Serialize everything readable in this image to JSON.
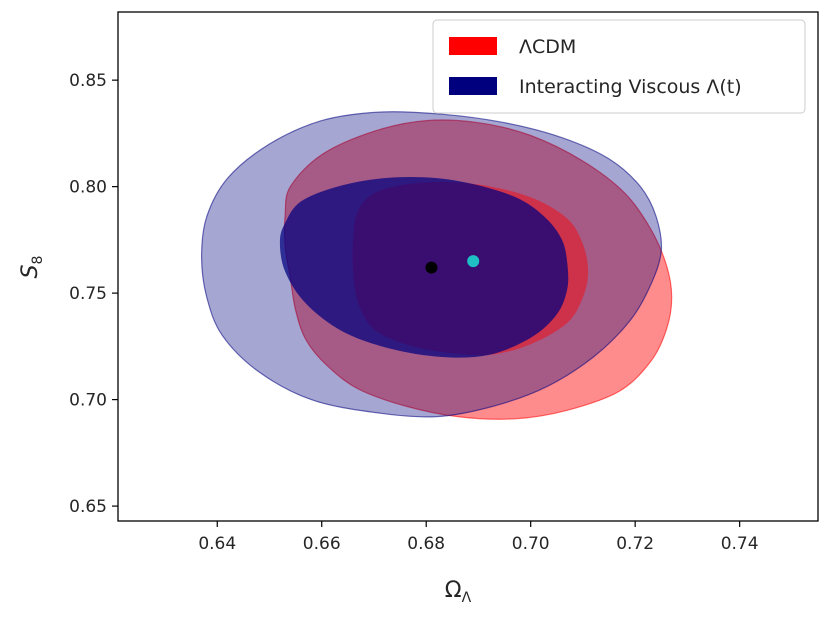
{
  "chart_data": {
    "type": "contour",
    "title": "",
    "xlabel": "Ω",
    "xlabel_sub": "Λ",
    "ylabel": "S",
    "ylabel_sub": "8",
    "xlim": [
      0.621,
      0.755
    ],
    "ylim": [
      0.643,
      0.882
    ],
    "xticks": [
      {
        "value": 0.64,
        "label": "0.64"
      },
      {
        "value": 0.66,
        "label": "0.66"
      },
      {
        "value": 0.68,
        "label": "0.68"
      },
      {
        "value": 0.7,
        "label": "0.70"
      },
      {
        "value": 0.72,
        "label": "0.72"
      },
      {
        "value": 0.74,
        "label": "0.74"
      }
    ],
    "yticks": [
      {
        "value": 0.65,
        "label": "0.65"
      },
      {
        "value": 0.7,
        "label": "0.70"
      },
      {
        "value": 0.75,
        "label": "0.75"
      },
      {
        "value": 0.8,
        "label": "0.80"
      },
      {
        "value": 0.85,
        "label": "0.85"
      }
    ],
    "grid": false,
    "legend_position": "top-right",
    "series": [
      {
        "name": "ΛCDM",
        "color": "#ff0000",
        "best_fit": {
          "x": 0.689,
          "y": 0.765,
          "color": "#1fbfc6"
        },
        "contour_68": [
          [
            0.667,
            0.789
          ],
          [
            0.671,
            0.798
          ],
          [
            0.68,
            0.802
          ],
          [
            0.69,
            0.801
          ],
          [
            0.7,
            0.795
          ],
          [
            0.707,
            0.785
          ],
          [
            0.71,
            0.773
          ],
          [
            0.711,
            0.76
          ],
          [
            0.71,
            0.748
          ],
          [
            0.707,
            0.736
          ],
          [
            0.7,
            0.726
          ],
          [
            0.692,
            0.721
          ],
          [
            0.684,
            0.722
          ],
          [
            0.676,
            0.726
          ],
          [
            0.67,
            0.733
          ],
          [
            0.667,
            0.745
          ],
          [
            0.666,
            0.76
          ],
          [
            0.666,
            0.775
          ]
        ],
        "contour_95": [
          [
            0.654,
            0.8
          ],
          [
            0.66,
            0.815
          ],
          [
            0.67,
            0.826
          ],
          [
            0.68,
            0.831
          ],
          [
            0.69,
            0.83
          ],
          [
            0.7,
            0.824
          ],
          [
            0.71,
            0.812
          ],
          [
            0.718,
            0.797
          ],
          [
            0.723,
            0.78
          ],
          [
            0.726,
            0.763
          ],
          [
            0.727,
            0.748
          ],
          [
            0.726,
            0.733
          ],
          [
            0.723,
            0.718
          ],
          [
            0.717,
            0.704
          ],
          [
            0.707,
            0.695
          ],
          [
            0.697,
            0.691
          ],
          [
            0.686,
            0.692
          ],
          [
            0.676,
            0.697
          ],
          [
            0.667,
            0.705
          ],
          [
            0.661,
            0.716
          ],
          [
            0.657,
            0.728
          ],
          [
            0.655,
            0.742
          ],
          [
            0.654,
            0.757
          ],
          [
            0.653,
            0.772
          ],
          [
            0.653,
            0.787
          ]
        ]
      },
      {
        "name": "Interacting Viscous Λ(t)",
        "color": "#00007f",
        "best_fit": {
          "x": 0.681,
          "y": 0.762,
          "color": "#000000"
        },
        "contour_68": [
          [
            0.653,
            0.783
          ],
          [
            0.656,
            0.793
          ],
          [
            0.663,
            0.8
          ],
          [
            0.672,
            0.804
          ],
          [
            0.682,
            0.804
          ],
          [
            0.691,
            0.8
          ],
          [
            0.698,
            0.794
          ],
          [
            0.703,
            0.785
          ],
          [
            0.706,
            0.775
          ],
          [
            0.707,
            0.764
          ],
          [
            0.707,
            0.752
          ],
          [
            0.705,
            0.74
          ],
          [
            0.7,
            0.729
          ],
          [
            0.692,
            0.721
          ],
          [
            0.683,
            0.72
          ],
          [
            0.673,
            0.724
          ],
          [
            0.664,
            0.732
          ],
          [
            0.657,
            0.745
          ],
          [
            0.653,
            0.76
          ],
          [
            0.652,
            0.774
          ]
        ],
        "contour_95": [
          [
            0.638,
            0.786
          ],
          [
            0.642,
            0.804
          ],
          [
            0.65,
            0.82
          ],
          [
            0.66,
            0.831
          ],
          [
            0.671,
            0.835
          ],
          [
            0.683,
            0.834
          ],
          [
            0.695,
            0.83
          ],
          [
            0.706,
            0.823
          ],
          [
            0.715,
            0.813
          ],
          [
            0.721,
            0.8
          ],
          [
            0.724,
            0.786
          ],
          [
            0.725,
            0.77
          ],
          [
            0.723,
            0.754
          ],
          [
            0.719,
            0.737
          ],
          [
            0.712,
            0.72
          ],
          [
            0.703,
            0.706
          ],
          [
            0.693,
            0.697
          ],
          [
            0.682,
            0.692
          ],
          [
            0.67,
            0.694
          ],
          [
            0.658,
            0.7
          ],
          [
            0.648,
            0.713
          ],
          [
            0.641,
            0.73
          ],
          [
            0.638,
            0.748
          ],
          [
            0.637,
            0.767
          ]
        ]
      }
    ]
  }
}
